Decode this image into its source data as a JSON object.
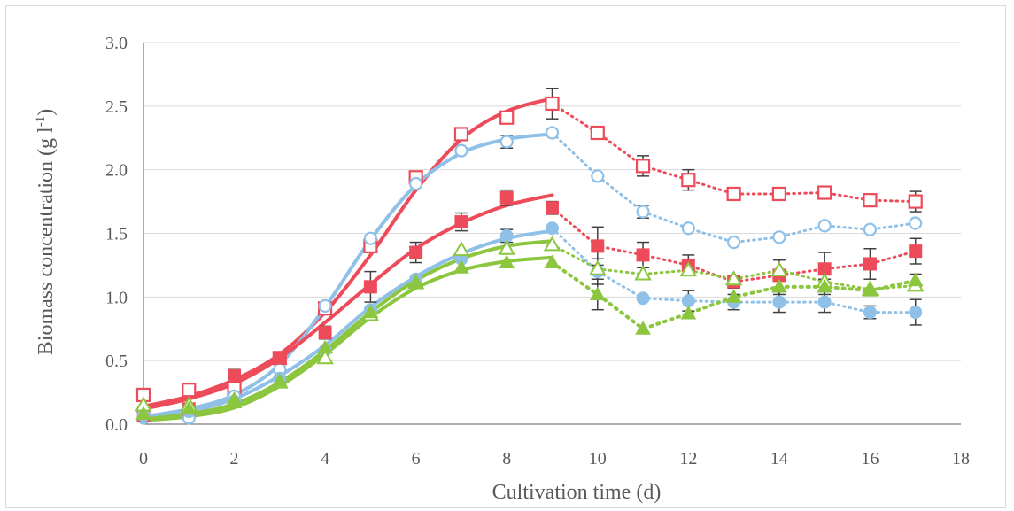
{
  "chart_data": {
    "type": "scatter",
    "title": "",
    "xlabel": "Cultivation time (d)",
    "ylabel_main": "Biomass concentration (g l",
    "ylabel_sup": "-1",
    "ylabel_close": ")",
    "xlim": [
      0,
      18
    ],
    "ylim": [
      0,
      3.0
    ],
    "x_ticks": [
      "0",
      "2",
      "4",
      "6",
      "8",
      "10",
      "12",
      "14",
      "16",
      "18"
    ],
    "y_ticks": [
      "0.0",
      "0.5",
      "1.0",
      "1.5",
      "2.0",
      "2.5",
      "3.0"
    ],
    "grid": true,
    "legend": "none",
    "colors": {
      "red": "#ee4b5a",
      "blue": "#8ec0e8",
      "green": "#8cc63f",
      "errorbar": "#404040",
      "grid": "#d9d9d9",
      "axis": "#595959"
    },
    "series": [
      {
        "marker": "open-square",
        "color": "#ee4b5a",
        "x": [
          0,
          1,
          2,
          3,
          4,
          5,
          6,
          7,
          8,
          9,
          10,
          11,
          12,
          13,
          14,
          15,
          16,
          17
        ],
        "y": [
          0.23,
          0.27,
          0.28,
          0.52,
          0.91,
          1.4,
          1.94,
          2.28,
          2.41,
          2.52,
          2.29,
          2.03,
          1.92,
          1.81,
          1.81,
          1.82,
          1.76,
          1.75
        ],
        "err": [
          0,
          0,
          0,
          0,
          0,
          0,
          0,
          0.05,
          0,
          0.12,
          0,
          0.08,
          0.08,
          0,
          0,
          0,
          0,
          0.08
        ],
        "fit": [
          [
            0,
            0.14
          ],
          [
            1,
            0.22
          ],
          [
            2,
            0.35
          ],
          [
            3,
            0.55
          ],
          [
            4,
            0.88
          ],
          [
            5,
            1.33
          ],
          [
            6,
            1.84
          ],
          [
            7,
            2.24
          ],
          [
            8,
            2.46
          ],
          [
            9,
            2.56
          ]
        ]
      },
      {
        "marker": "open-circle",
        "color": "#8ec0e8",
        "x": [
          0,
          1,
          2,
          3,
          4,
          5,
          6,
          7,
          8,
          9,
          10,
          11,
          12,
          13,
          14,
          15,
          16,
          17
        ],
        "y": [
          0.05,
          0.05,
          0.22,
          0.43,
          0.93,
          1.46,
          1.89,
          2.15,
          2.22,
          2.29,
          1.95,
          1.67,
          1.54,
          1.43,
          1.47,
          1.56,
          1.53,
          1.58
        ],
        "err": [
          0,
          0,
          0,
          0,
          0,
          0,
          0,
          0,
          0.05,
          0,
          0,
          0.05,
          0,
          0,
          0,
          0,
          0,
          0
        ],
        "fit": [
          [
            0,
            0.06
          ],
          [
            1,
            0.12
          ],
          [
            2,
            0.23
          ],
          [
            3,
            0.47
          ],
          [
            4,
            0.92
          ],
          [
            5,
            1.45
          ],
          [
            6,
            1.88
          ],
          [
            7,
            2.13
          ],
          [
            8,
            2.24
          ],
          [
            9,
            2.28
          ]
        ]
      },
      {
        "marker": "filled-square",
        "color": "#ee4b5a",
        "x": [
          0,
          1,
          2,
          3,
          4,
          5,
          6,
          7,
          8,
          9,
          10,
          11,
          12,
          13,
          14,
          15,
          16,
          17
        ],
        "y": [
          0.07,
          0.12,
          0.38,
          0.52,
          0.72,
          1.08,
          1.35,
          1.59,
          1.78,
          1.7,
          1.4,
          1.33,
          1.25,
          1.12,
          1.17,
          1.22,
          1.26,
          1.36
        ],
        "err": [
          0,
          0,
          0.05,
          0,
          0.05,
          0.12,
          0.08,
          0.07,
          0.06,
          0.05,
          0.15,
          0.1,
          0.08,
          0.05,
          0.12,
          0.13,
          0.12,
          0.1
        ],
        "fit": [
          [
            0,
            0.12
          ],
          [
            1,
            0.2
          ],
          [
            2,
            0.32
          ],
          [
            3,
            0.52
          ],
          [
            4,
            0.8
          ],
          [
            5,
            1.1
          ],
          [
            6,
            1.38
          ],
          [
            7,
            1.58
          ],
          [
            8,
            1.72
          ],
          [
            9,
            1.8
          ]
        ]
      },
      {
        "marker": "filled-circle",
        "color": "#8ec0e8",
        "x": [
          0,
          1,
          2,
          3,
          4,
          5,
          6,
          7,
          8,
          9,
          10,
          11,
          12,
          13,
          14,
          15,
          16,
          17
        ],
        "y": [
          0.07,
          0.1,
          0.18,
          0.36,
          0.58,
          0.9,
          1.14,
          1.3,
          1.48,
          1.54,
          1.2,
          0.99,
          0.97,
          0.96,
          0.96,
          0.96,
          0.88,
          0.88
        ],
        "err": [
          0,
          0,
          0,
          0,
          0,
          0,
          0,
          0,
          0.05,
          0,
          0.1,
          0,
          0.08,
          0.06,
          0.08,
          0.08,
          0.05,
          0.1
        ],
        "fit": [
          [
            0,
            0.06
          ],
          [
            1,
            0.1
          ],
          [
            2,
            0.2
          ],
          [
            3,
            0.38
          ],
          [
            4,
            0.62
          ],
          [
            5,
            0.92
          ],
          [
            6,
            1.16
          ],
          [
            7,
            1.34
          ],
          [
            8,
            1.46
          ],
          [
            9,
            1.52
          ]
        ]
      },
      {
        "marker": "open-triangle",
        "color": "#8cc63f",
        "x": [
          0,
          1,
          2,
          3,
          4,
          5,
          6,
          7,
          8,
          9,
          10,
          11,
          12,
          13,
          14,
          15,
          16,
          17
        ],
        "y": [
          0.15,
          0.15,
          0.19,
          0.33,
          0.52,
          0.86,
          1.11,
          1.37,
          1.38,
          1.41,
          1.22,
          1.18,
          1.21,
          1.14,
          1.21,
          1.12,
          1.06,
          1.09
        ],
        "err": [
          0,
          0,
          0,
          0,
          0,
          0,
          0,
          0,
          0,
          0,
          0,
          0,
          0,
          0,
          0,
          0,
          0,
          0
        ],
        "fit": [
          [
            0,
            0.04
          ],
          [
            1,
            0.08
          ],
          [
            2,
            0.16
          ],
          [
            3,
            0.33
          ],
          [
            4,
            0.58
          ],
          [
            5,
            0.88
          ],
          [
            6,
            1.13
          ],
          [
            7,
            1.3
          ],
          [
            8,
            1.4
          ],
          [
            9,
            1.44
          ]
        ]
      },
      {
        "marker": "filled-triangle",
        "color": "#8cc63f",
        "x": [
          0,
          1,
          2,
          3,
          4,
          5,
          6,
          7,
          8,
          9,
          10,
          11,
          12,
          13,
          14,
          15,
          16,
          17
        ],
        "y": [
          0.08,
          0.12,
          0.17,
          0.34,
          0.6,
          0.88,
          1.11,
          1.23,
          1.27,
          1.27,
          1.02,
          0.75,
          0.87,
          1.0,
          1.08,
          1.08,
          1.05,
          1.13
        ],
        "err": [
          0,
          0,
          0,
          0,
          0,
          0,
          0,
          0,
          0,
          0,
          0.12,
          0,
          0,
          0,
          0.06,
          0.06,
          0,
          0.05
        ],
        "fit": [
          [
            0,
            0.03
          ],
          [
            1,
            0.06
          ],
          [
            2,
            0.13
          ],
          [
            3,
            0.3
          ],
          [
            4,
            0.55
          ],
          [
            5,
            0.84
          ],
          [
            6,
            1.07
          ],
          [
            7,
            1.21
          ],
          [
            8,
            1.28
          ],
          [
            9,
            1.31
          ]
        ]
      }
    ]
  }
}
